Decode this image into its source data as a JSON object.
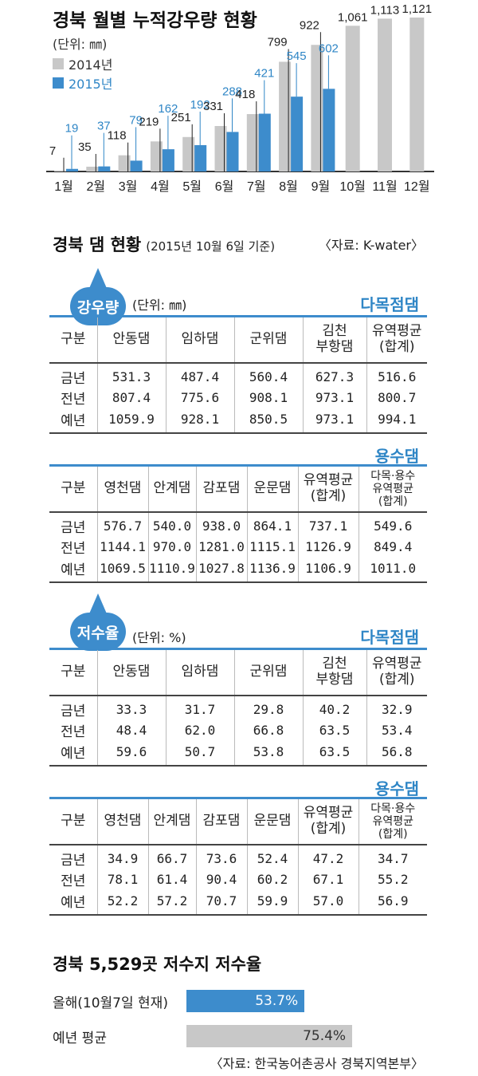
{
  "main_title": "경북 월별 누적강우량 현황",
  "unit": "(단위: ㎜)",
  "colors": {
    "y2014": "#c8c8c8",
    "y2015": "#3d8ccc",
    "accent": "#2f86c6"
  },
  "chart_data": {
    "type": "bar",
    "categories": [
      "1월",
      "2월",
      "3월",
      "4월",
      "5월",
      "6월",
      "7월",
      "8월",
      "9월",
      "10월",
      "11월",
      "12월"
    ],
    "series": [
      {
        "name": "2014년",
        "values": [
          7,
          35,
          118,
          219,
          251,
          331,
          418,
          799,
          922,
          1061,
          1113,
          1121
        ],
        "labels": [
          "7",
          "35",
          "118",
          "219",
          "251",
          "331",
          "418",
          "799",
          "922",
          "1,061",
          "1,113",
          "1,121"
        ]
      },
      {
        "name": "2015년",
        "values": [
          19,
          37,
          79,
          162,
          192,
          288,
          421,
          545,
          602,
          null,
          null,
          null
        ],
        "labels": [
          "19",
          "37",
          "79",
          "162",
          "192",
          "288",
          "421",
          "545",
          "602",
          "",
          "",
          ""
        ]
      }
    ]
  },
  "dam": {
    "title": "경북 댐 현황",
    "date": "(2015년 10월 6일 기준)",
    "source": "〈자료: K-water〉",
    "rain": {
      "badge": "강우량",
      "unit": "(단위: ㎜)",
      "multi": {
        "label": "다목점댐",
        "headers": [
          "구분",
          "안동댐",
          "임하댐",
          "군위댐",
          "김천\n부항댐",
          "유역평균\n(합계)"
        ],
        "rows": [
          [
            "금년",
            "531.3",
            "487.4",
            "560.4",
            "627.3",
            "516.6"
          ],
          [
            "전년",
            "807.4",
            "775.6",
            "908.1",
            "973.1",
            "800.7"
          ],
          [
            "예년",
            "1059.9",
            "928.1",
            "850.5",
            "973.1",
            "994.1"
          ]
        ]
      },
      "water": {
        "label": "용수댐",
        "headers": [
          "구분",
          "영천댐",
          "안계댐",
          "감포댐",
          "운문댐",
          "유역평균\n(합계)",
          "다목·용수\n유역평균\n(합계)"
        ],
        "rows": [
          [
            "금년",
            "576.7",
            "540.0",
            "938.0",
            "864.1",
            "737.1",
            "549.6"
          ],
          [
            "전년",
            "1144.1",
            "970.0",
            "1281.0",
            "1115.1",
            "1126.9",
            "849.4"
          ],
          [
            "예년",
            "1069.5",
            "1110.9",
            "1027.8",
            "1136.9",
            "1106.9",
            "1011.0"
          ]
        ]
      }
    },
    "storage": {
      "badge": "저수율",
      "unit": "(단위: %)",
      "multi": {
        "label": "다목점댐",
        "headers": [
          "구분",
          "안동댐",
          "임하댐",
          "군위댐",
          "김천\n부항댐",
          "유역평균\n(합계)"
        ],
        "rows": [
          [
            "금년",
            "33.3",
            "31.7",
            "29.8",
            "40.2",
            "32.9"
          ],
          [
            "전년",
            "48.4",
            "62.0",
            "66.8",
            "63.5",
            "53.4"
          ],
          [
            "예년",
            "59.6",
            "50.7",
            "53.8",
            "63.5",
            "56.8"
          ]
        ]
      },
      "water": {
        "label": "용수댐",
        "headers": [
          "구분",
          "영천댐",
          "안계댐",
          "감포댐",
          "운문댐",
          "유역평균\n(합계)",
          "다목·용수\n유역평균\n(합계)"
        ],
        "rows": [
          [
            "금년",
            "34.9",
            "66.7",
            "73.6",
            "52.4",
            "47.2",
            "34.7"
          ],
          [
            "전년",
            "78.1",
            "61.4",
            "90.4",
            "60.2",
            "67.1",
            "55.2"
          ],
          [
            "예년",
            "52.2",
            "57.2",
            "70.7",
            "59.9",
            "57.0",
            "56.9"
          ]
        ]
      }
    }
  },
  "reservoir": {
    "title": "경북 5,529곳 저수지 저수율",
    "bars": [
      {
        "label": "올해(10월7일 현재)",
        "value": 53.7,
        "text": "53.7%"
      },
      {
        "label": "예년 평균",
        "value": 75.4,
        "text": "75.4%"
      }
    ],
    "source": "〈자료: 한국농어촌공사 경북지역본부〉"
  }
}
